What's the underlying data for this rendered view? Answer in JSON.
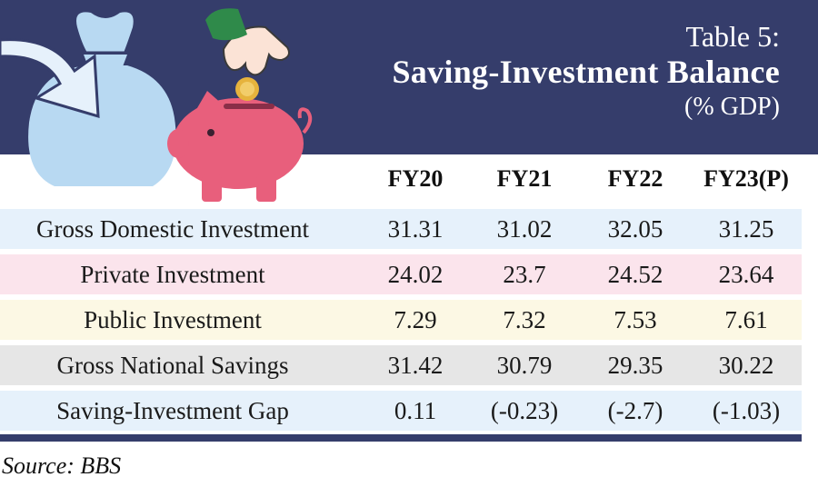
{
  "header": {
    "table_label": "Table 5:",
    "title": "Saving-Investment Balance",
    "unit": "(% GDP)"
  },
  "columns": [
    "FY20",
    "FY21",
    "FY22",
    "FY23(P)"
  ],
  "rows": [
    {
      "label": "Gross Domestic Investment",
      "values": [
        "31.31",
        "31.02",
        "32.05",
        "31.25"
      ],
      "bg": "#e6f1fb"
    },
    {
      "label": "Private Investment",
      "values": [
        "24.02",
        "23.7",
        "24.52",
        "23.64"
      ],
      "bg": "#fbe4ec"
    },
    {
      "label": "Public Investment",
      "values": [
        "7.29",
        "7.32",
        "7.53",
        "7.61"
      ],
      "bg": "#fcf8e4"
    },
    {
      "label": "Gross National Savings",
      "values": [
        "31.42",
        "30.79",
        "29.35",
        "30.22"
      ],
      "bg": "#e6e6e6"
    },
    {
      "label": "Saving-Investment Gap",
      "values": [
        "0.11",
        "(-0.23)",
        "(-2.7)",
        "(-1.03)"
      ],
      "bg": "#e6f1fb"
    }
  ],
  "source": "Source: BBS",
  "colors": {
    "header_bg": "#353d6b",
    "bag": "#b8d9f2",
    "piggy": "#e85f7c",
    "coin": "#e6b33d"
  }
}
